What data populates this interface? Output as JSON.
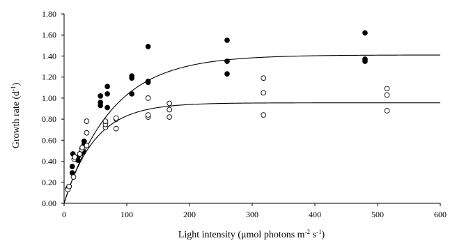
{
  "chart_data": {
    "type": "scatter",
    "title": "",
    "xlabel": {
      "text": "Light intensity (",
      "unit_text": "μmol photons m",
      "sup1": "-2",
      "mid": " s",
      "sup2": "-1",
      "end": ")"
    },
    "ylabel": {
      "text": "Growth rate (d",
      "sup": "-1",
      "end": ")"
    },
    "xlim": [
      0,
      600
    ],
    "ylim": [
      0,
      1.8
    ],
    "x_ticks": [
      0,
      100,
      200,
      300,
      400,
      500,
      600
    ],
    "x_tick_labels": [
      "0",
      "100",
      "200",
      "300",
      "400",
      "500",
      "600"
    ],
    "y_ticks": [
      0,
      0.2,
      0.4,
      0.6,
      0.8,
      1.0,
      1.2,
      1.4,
      1.6,
      1.8
    ],
    "y_tick_labels": [
      "0.00",
      "0.20",
      "0.40",
      "0.60",
      "0.80",
      "1.00",
      "1.20",
      "1.40",
      "1.60",
      "1.80"
    ],
    "grid": false,
    "legend": "none",
    "series": [
      {
        "marker": "filled-circle",
        "color": "#000000",
        "points": [
          [
            6,
            0.14
          ],
          [
            7,
            0.15
          ],
          [
            8,
            0.16
          ],
          [
            13,
            0.29
          ],
          [
            13,
            0.35
          ],
          [
            14,
            0.47
          ],
          [
            22,
            0.41
          ],
          [
            22,
            0.44
          ],
          [
            28,
            0.48
          ],
          [
            31,
            0.49
          ],
          [
            32,
            0.56
          ],
          [
            32,
            0.59
          ],
          [
            58,
            0.93
          ],
          [
            58,
            0.96
          ],
          [
            58,
            1.02
          ],
          [
            69,
            0.91
          ],
          [
            69,
            1.04
          ],
          [
            69,
            1.11
          ],
          [
            108,
            1.04
          ],
          [
            108,
            1.19
          ],
          [
            108,
            1.21
          ],
          [
            134,
            1.15
          ],
          [
            134,
            1.16
          ],
          [
            134,
            1.49
          ],
          [
            260,
            1.23
          ],
          [
            260,
            1.35
          ],
          [
            260,
            1.55
          ],
          [
            480,
            1.35
          ],
          [
            480,
            1.37
          ],
          [
            480,
            1.62
          ]
        ]
      },
      {
        "marker": "open-circle",
        "color": "#000000",
        "points": [
          [
            6,
            0.13
          ],
          [
            8,
            0.16
          ],
          [
            15,
            0.25
          ],
          [
            16,
            0.42
          ],
          [
            17,
            0.44
          ],
          [
            25,
            0.47
          ],
          [
            28,
            0.51
          ],
          [
            29,
            0.53
          ],
          [
            36,
            0.55
          ],
          [
            36,
            0.67
          ],
          [
            36,
            0.78
          ],
          [
            66,
            0.72
          ],
          [
            66,
            0.75
          ],
          [
            66,
            0.78
          ],
          [
            83,
            0.71
          ],
          [
            83,
            0.8
          ],
          [
            83,
            0.81
          ],
          [
            134,
            0.82
          ],
          [
            134,
            0.84
          ],
          [
            134,
            1.0
          ],
          [
            168,
            0.82
          ],
          [
            168,
            0.89
          ],
          [
            168,
            0.95
          ],
          [
            318,
            0.84
          ],
          [
            318,
            1.05
          ],
          [
            318,
            1.19
          ],
          [
            515,
            0.88
          ],
          [
            515,
            1.03
          ],
          [
            515,
            1.09
          ]
        ]
      }
    ],
    "fit_curves": [
      {
        "max": 1.41,
        "initial_slope": 0.0185
      },
      {
        "max": 0.955,
        "initial_slope": 0.0195
      }
    ]
  }
}
